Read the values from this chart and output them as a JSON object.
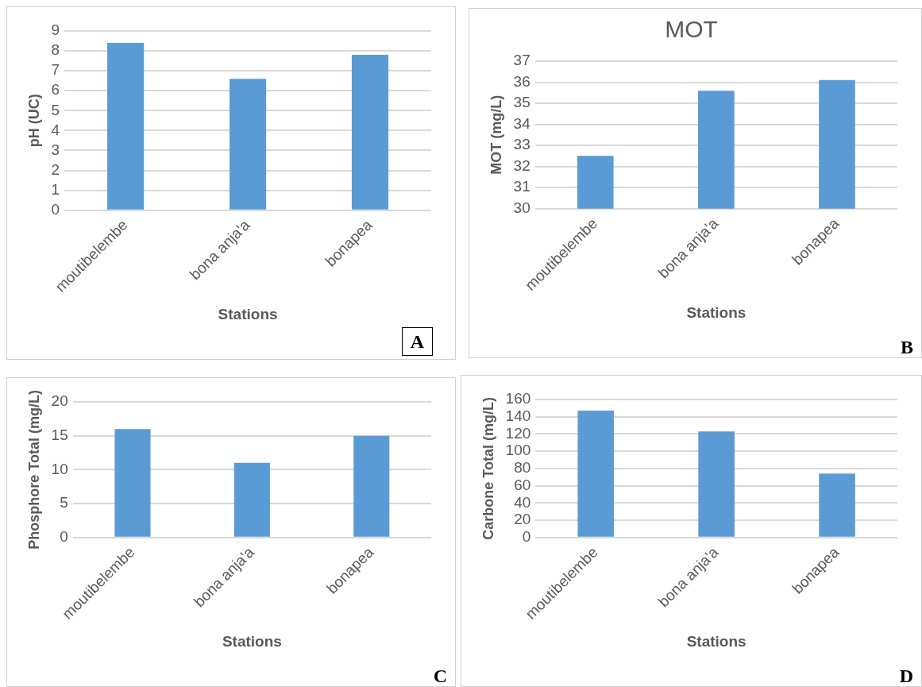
{
  "chart_data": [
    {
      "type": "bar",
      "categories": [
        "moutibelembe",
        "bona anja'a",
        "bonapea"
      ],
      "values": [
        8.4,
        6.6,
        7.8
      ],
      "color": "#5b9bd5",
      "xlabel": "Stations",
      "ylabel": "pH (UC)",
      "ylim": [
        0,
        9
      ],
      "yticks": [
        0,
        1,
        2,
        3,
        4,
        5,
        6,
        7,
        8,
        9
      ],
      "grid": "y",
      "legend": false,
      "annotations": [
        "A"
      ]
    },
    {
      "type": "bar",
      "title": "MOT",
      "categories": [
        "moutibelembe",
        "bona anja'a",
        "bonapea"
      ],
      "values": [
        32.5,
        35.6,
        36.1
      ],
      "color": "#5b9bd5",
      "xlabel": "Stations",
      "ylabel": "MOT (mg/L)",
      "ylim": [
        30,
        37
      ],
      "yticks": [
        30,
        31,
        32,
        33,
        34,
        35,
        36,
        37
      ],
      "grid": "y",
      "legend": false,
      "annotations": [
        "B"
      ]
    },
    {
      "type": "bar",
      "categories": [
        "moutibelembe",
        "bona anja'a",
        "bonapea"
      ],
      "values": [
        16,
        11,
        15
      ],
      "color": "#5b9bd5",
      "xlabel": "Stations",
      "ylabel": "Phosphore Total (mg/L)",
      "ylim": [
        0,
        20
      ],
      "yticks": [
        0,
        5,
        10,
        15,
        20
      ],
      "grid": "y",
      "legend": false,
      "annotations": [
        "C"
      ]
    },
    {
      "type": "bar",
      "categories": [
        "moutibelembe",
        "bona anja'a",
        "bonapea"
      ],
      "values": [
        147,
        123,
        74
      ],
      "color": "#5b9bd5",
      "xlabel": "Stations",
      "ylabel": "Carbone Total (mg/L)",
      "ylim": [
        0,
        160
      ],
      "yticks": [
        0,
        20,
        40,
        60,
        80,
        100,
        120,
        140,
        160
      ],
      "grid": "y",
      "legend": false,
      "annotations": [
        "D"
      ]
    }
  ]
}
